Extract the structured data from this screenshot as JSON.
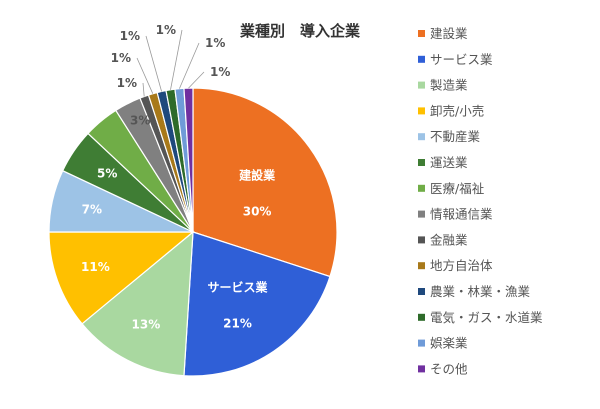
{
  "chart_data": {
    "type": "pie",
    "title": "業種別　導入企業",
    "legend_position": "right",
    "slices": [
      {
        "name": "建設業",
        "value": 30,
        "label": "30%",
        "color": "#ED7022"
      },
      {
        "name": "サービス業",
        "value": 21,
        "label": "21%",
        "color": "#2F5FD7"
      },
      {
        "name": "製造業",
        "value": 13,
        "label": "13%",
        "color": "#A9D8A0"
      },
      {
        "name": "卸売/小売",
        "value": 11,
        "label": "11%",
        "color": "#FFC000"
      },
      {
        "name": "不動産業",
        "value": 7,
        "label": "7%",
        "color": "#9DC3E6"
      },
      {
        "name": "運送業",
        "value": 5,
        "label": "5%",
        "color": "#3F7D34"
      },
      {
        "name": "医療/福祉",
        "value": 4,
        "label": "",
        "color": "#70AD47"
      },
      {
        "name": "情報通信業",
        "value": 3,
        "label": "3%",
        "color": "#808080"
      },
      {
        "name": "金融業",
        "value": 1,
        "label": "1%",
        "color": "#555555"
      },
      {
        "name": "地方自治体",
        "value": 1,
        "label": "1%",
        "color": "#A8791A"
      },
      {
        "name": "農業・林業・漁業",
        "value": 1,
        "label": "1%",
        "color": "#1F497D"
      },
      {
        "name": "電気・ガス・水道業",
        "value": 1,
        "label": "1%",
        "color": "#2E6B2A"
      },
      {
        "name": "娯楽業",
        "value": 1,
        "label": "1%",
        "color": "#6F9BD8"
      },
      {
        "name": "その他",
        "value": 1,
        "label": "1%",
        "color": "#7030A0"
      }
    ]
  }
}
